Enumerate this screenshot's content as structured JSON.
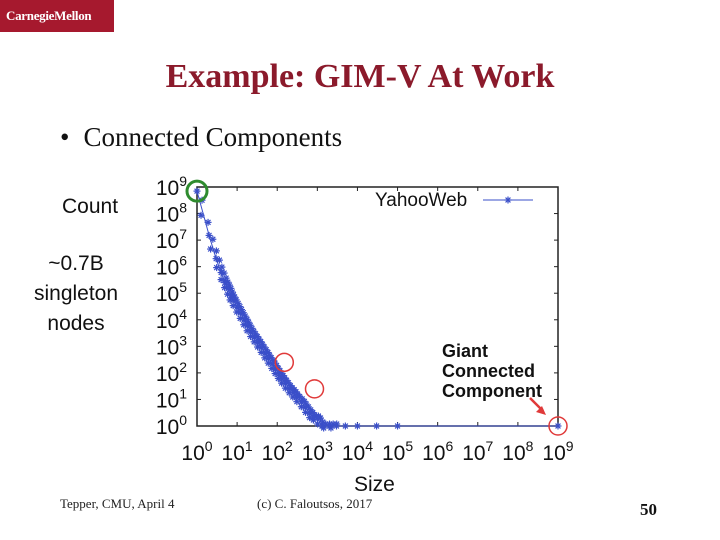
{
  "logo": "CarnegieMellon",
  "slide": {
    "title": "Example: GIM-V At Work",
    "bullet": "Connected Components",
    "count_label": "Count",
    "singleton_label": "~0.7B singleton nodes",
    "size_label": "Size",
    "footer_left": "Tepper, CMU, April 4",
    "footer_center": "(c) C. Faloutsos, 2017",
    "page_number": "50"
  },
  "chart_data": {
    "type": "scatter",
    "xscale": "log",
    "yscale": "log",
    "xlim": [
      1,
      1000000000
    ],
    "ylim": [
      1,
      1000000000
    ],
    "xlabel": "Size",
    "ylabel": "Count",
    "x_tick_labels": [
      "10^0",
      "10^1",
      "10^2",
      "10^3",
      "10^4",
      "10^5",
      "10^6",
      "10^7",
      "10^8",
      "10^9"
    ],
    "y_tick_labels": [
      "10^0",
      "10^1",
      "10^2",
      "10^3",
      "10^4",
      "10^5",
      "10^6",
      "10^7",
      "10^8",
      "10^9"
    ],
    "series": [
      {
        "name": "YahooWeb",
        "color": "#3a4fc9",
        "marker": "asterisk",
        "points": [
          [
            1,
            700000000
          ],
          [
            2,
            15000000
          ],
          [
            3,
            2000000
          ],
          [
            4,
            600000
          ],
          [
            5,
            250000
          ],
          [
            6,
            150000
          ],
          [
            7,
            80000
          ],
          [
            8,
            55000
          ],
          [
            10,
            30000
          ],
          [
            12,
            18000
          ],
          [
            15,
            10000
          ],
          [
            18,
            6000
          ],
          [
            22,
            3500
          ],
          [
            27,
            2200
          ],
          [
            33,
            1400
          ],
          [
            40,
            900
          ],
          [
            50,
            550
          ],
          [
            60,
            350
          ],
          [
            75,
            220
          ],
          [
            90,
            140
          ],
          [
            110,
            90
          ],
          [
            130,
            60
          ],
          [
            160,
            40
          ],
          [
            200,
            25
          ],
          [
            250,
            18
          ],
          [
            300,
            12
          ],
          [
            400,
            8
          ],
          [
            500,
            5
          ],
          [
            650,
            3
          ],
          [
            800,
            2
          ],
          [
            1000,
            2
          ],
          [
            1300,
            1
          ],
          [
            2000,
            1
          ],
          [
            3000,
            1
          ],
          [
            5000,
            1
          ],
          [
            10000,
            1
          ],
          [
            30000,
            1
          ],
          [
            100000,
            1
          ],
          [
            1000000000,
            1
          ]
        ]
      }
    ],
    "annotations": [
      "Giant Connected Component"
    ]
  }
}
